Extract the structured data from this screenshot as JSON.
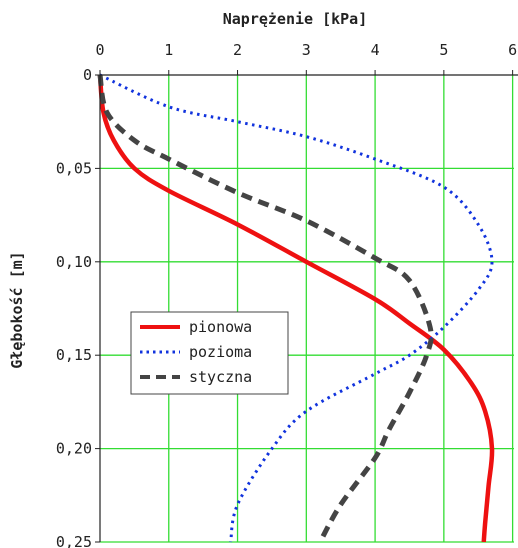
{
  "chart_data": {
    "type": "line",
    "title": "",
    "xlabel": "Naprężenie [kPa]",
    "ylabel": "Głębokość [m]",
    "xlim": [
      0,
      6
    ],
    "ylim": [
      0,
      0.25
    ],
    "y_inverted": true,
    "x_axis_position": "top",
    "grid": true,
    "grid_color": "#33dd33",
    "legend_position": "center-left",
    "x_ticks": [
      "0",
      "1",
      "2",
      "3",
      "4",
      "5",
      "6"
    ],
    "y_ticks": [
      "0",
      "0,05",
      "0,10",
      "0,15",
      "0,20",
      "0,25"
    ],
    "series": [
      {
        "name": "pionowa",
        "color": "#ee1111",
        "style": "solid",
        "points": [
          [
            0.0,
            0.0
          ],
          [
            0.05,
            0.02
          ],
          [
            0.2,
            0.035
          ],
          [
            0.5,
            0.05
          ],
          [
            1.0,
            0.062
          ],
          [
            2.0,
            0.08
          ],
          [
            3.0,
            0.1
          ],
          [
            4.0,
            0.12
          ],
          [
            4.5,
            0.133
          ],
          [
            5.0,
            0.147
          ],
          [
            5.4,
            0.165
          ],
          [
            5.6,
            0.18
          ],
          [
            5.7,
            0.2
          ],
          [
            5.65,
            0.22
          ],
          [
            5.6,
            0.24
          ],
          [
            5.58,
            0.25
          ]
        ]
      },
      {
        "name": "pozioma",
        "color": "#1133dd",
        "style": "dotted",
        "points": [
          [
            0.0,
            0.0
          ],
          [
            1.0,
            0.017
          ],
          [
            2.0,
            0.025
          ],
          [
            3.0,
            0.033
          ],
          [
            4.0,
            0.045
          ],
          [
            5.0,
            0.06
          ],
          [
            5.5,
            0.08
          ],
          [
            5.7,
            0.1
          ],
          [
            5.5,
            0.115
          ],
          [
            5.0,
            0.135
          ],
          [
            4.5,
            0.15
          ],
          [
            4.0,
            0.16
          ],
          [
            3.0,
            0.18
          ],
          [
            2.5,
            0.2
          ],
          [
            2.0,
            0.23
          ],
          [
            1.9,
            0.25
          ]
        ]
      },
      {
        "name": "styczna",
        "color": "#444444",
        "style": "dashed",
        "points": [
          [
            0.0,
            0.0
          ],
          [
            0.1,
            0.02
          ],
          [
            0.5,
            0.035
          ],
          [
            1.0,
            0.045
          ],
          [
            2.0,
            0.063
          ],
          [
            3.0,
            0.078
          ],
          [
            4.0,
            0.098
          ],
          [
            4.5,
            0.11
          ],
          [
            4.8,
            0.135
          ],
          [
            4.75,
            0.15
          ],
          [
            4.5,
            0.17
          ],
          [
            4.2,
            0.19
          ],
          [
            4.0,
            0.205
          ],
          [
            3.5,
            0.23
          ],
          [
            3.2,
            0.25
          ]
        ]
      }
    ]
  }
}
